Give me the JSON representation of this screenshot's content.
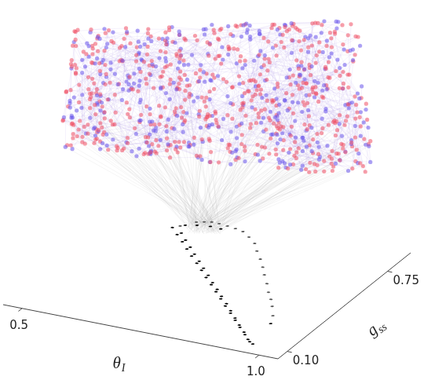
{
  "chart_data": {
    "type": "scatter",
    "x_label": "θI",
    "y_label": "gss",
    "xlim": [
      0.46,
      1.04
    ],
    "xticks": [
      {
        "value": 0.5,
        "label": "0.5"
      },
      {
        "value": 1.0,
        "label": "1.0"
      }
    ],
    "ylim": [
      0.04,
      0.9
    ],
    "yticks": [
      {
        "value": 0.1,
        "label": "0.10"
      },
      {
        "value": 0.75,
        "label": "0.75"
      }
    ],
    "grid": false,
    "series": [
      {
        "color": "#000000",
        "x": [
          0.956,
          0.933,
          0.909,
          0.886,
          0.863,
          0.839,
          0.816,
          0.793,
          0.77,
          0.746,
          0.723,
          0.7,
          0.676,
          0.653,
          0.63,
          0.606,
          0.583,
          0.948,
          0.926,
          0.903,
          0.881,
          0.858,
          0.836,
          0.812,
          0.79,
          0.768,
          0.745,
          0.722,
          0.7,
          0.677,
          0.655,
          0.632,
          0.61,
          0.953,
          0.966,
          0.6,
          0.62,
          0.645,
          0.668
        ],
        "y": [
          0.115,
          0.155,
          0.196,
          0.236,
          0.276,
          0.316,
          0.357,
          0.397,
          0.437,
          0.477,
          0.518,
          0.558,
          0.598,
          0.638,
          0.679,
          0.719,
          0.759,
          0.128,
          0.17,
          0.21,
          0.25,
          0.292,
          0.333,
          0.374,
          0.414,
          0.452,
          0.494,
          0.534,
          0.574,
          0.614,
          0.654,
          0.694,
          0.734,
          0.26,
          0.104,
          0.79,
          0.805,
          0.815,
          0.812
        ]
      },
      {
        "color": "#555555",
        "x": [
          0.593,
          0.612,
          0.625,
          0.638,
          0.654,
          0.673,
          0.692,
          0.711,
          0.733,
          0.756,
          0.776,
          0.799,
          0.82,
          0.839,
          0.862,
          0.883,
          0.902,
          0.919,
          0.94
        ],
        "y": [
          0.779,
          0.825,
          0.836,
          0.845,
          0.844,
          0.839,
          0.833,
          0.823,
          0.795,
          0.761,
          0.714,
          0.666,
          0.617,
          0.569,
          0.515,
          0.461,
          0.418,
          0.374,
          0.314
        ]
      }
    ]
  }
}
